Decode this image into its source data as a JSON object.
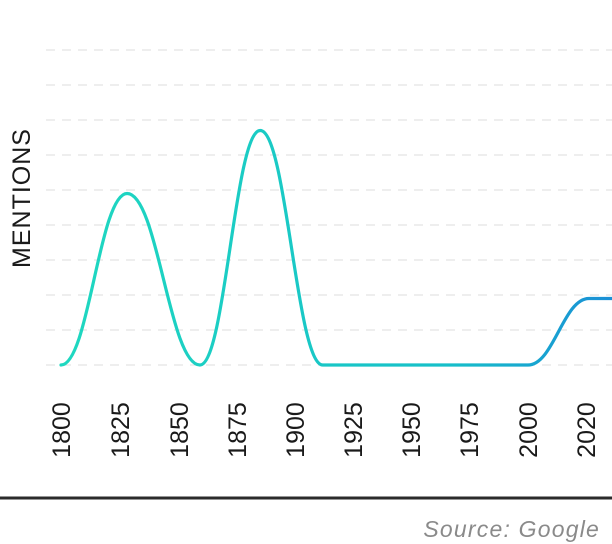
{
  "chart_data": {
    "type": "line",
    "title": "",
    "xlabel": "",
    "ylabel": "MENTIONS",
    "x_ticks": [
      "1800",
      "1825",
      "1850",
      "1875",
      "1900",
      "1925",
      "1950",
      "1975",
      "2000",
      "2020"
    ],
    "series": [
      {
        "x": [
          1800,
          1828,
          1859,
          1885,
          1912,
          1925,
          1950,
          1975,
          2000,
          2021
        ],
        "values": [
          0,
          49,
          0,
          67,
          0,
          0,
          0,
          0,
          0,
          19
        ]
      }
    ],
    "ylim": [
      0,
      92
    ],
    "grid": true,
    "colors": {
      "line_start": "#1fd8c0",
      "line_end": "#1a8fd6",
      "baseline": "#2b2b2b",
      "grid": "#e3e3e3"
    }
  },
  "source": "Source: Google"
}
